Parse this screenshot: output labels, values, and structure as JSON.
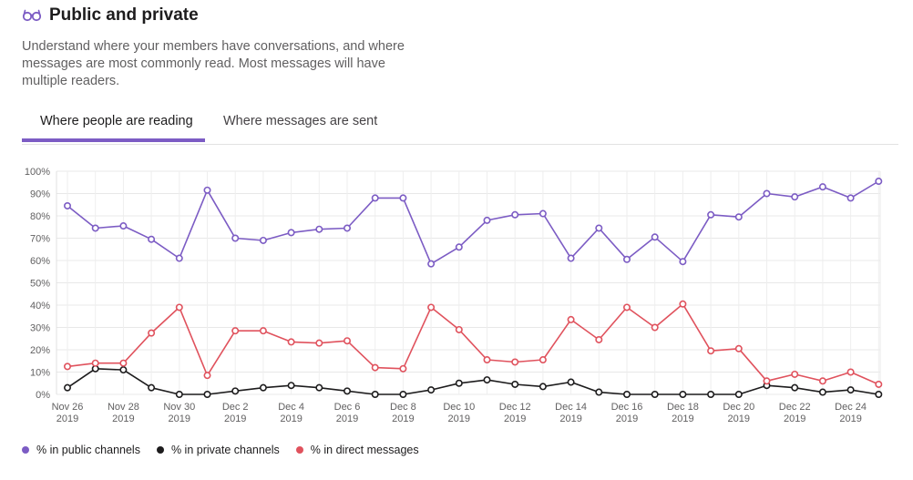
{
  "header": {
    "title": "Public and private",
    "icon": "glasses-icon"
  },
  "description": "Understand where your members have conversations, and where messages are most commonly read. Most messages will have multiple readers.",
  "tabs": [
    {
      "label": "Where people are reading",
      "active": true
    },
    {
      "label": "Where messages are sent",
      "active": false
    }
  ],
  "colors": {
    "public": "#7c5cc4",
    "private": "#1d1c1d",
    "direct": "#e0525d",
    "accent": "#7c5cc4"
  },
  "chart_data": {
    "type": "line",
    "x": [
      "Nov 26 2019",
      "Nov 27 2019",
      "Nov 28 2019",
      "Nov 29 2019",
      "Nov 30 2019",
      "Dec 1 2019",
      "Dec 2 2019",
      "Dec 3 2019",
      "Dec 4 2019",
      "Dec 5 2019",
      "Dec 6 2019",
      "Dec 7 2019",
      "Dec 8 2019",
      "Dec 9 2019",
      "Dec 10 2019",
      "Dec 11 2019",
      "Dec 12 2019",
      "Dec 13 2019",
      "Dec 14 2019",
      "Dec 15 2019",
      "Dec 16 2019",
      "Dec 17 2019",
      "Dec 18 2019",
      "Dec 19 2019",
      "Dec 20 2019",
      "Dec 21 2019",
      "Dec 22 2019",
      "Dec 23 2019",
      "Dec 24 2019",
      "Dec 25 2019"
    ],
    "x_tick_labels": [
      {
        "line1": "Nov 26",
        "line2": "2019"
      },
      {
        "line1": "Nov 28",
        "line2": "2019"
      },
      {
        "line1": "Nov 30",
        "line2": "2019"
      },
      {
        "line1": "Dec 2",
        "line2": "2019"
      },
      {
        "line1": "Dec 4",
        "line2": "2019"
      },
      {
        "line1": "Dec 6",
        "line2": "2019"
      },
      {
        "line1": "Dec 8",
        "line2": "2019"
      },
      {
        "line1": "Dec 10",
        "line2": "2019"
      },
      {
        "line1": "Dec 12",
        "line2": "2019"
      },
      {
        "line1": "Dec 14",
        "line2": "2019"
      },
      {
        "line1": "Dec 16",
        "line2": "2019"
      },
      {
        "line1": "Dec 18",
        "line2": "2019"
      },
      {
        "line1": "Dec 20",
        "line2": "2019"
      },
      {
        "line1": "Dec 22",
        "line2": "2019"
      },
      {
        "line1": "Dec 24",
        "line2": "2019"
      }
    ],
    "y_tick_labels": [
      "0%",
      "10%",
      "20%",
      "30%",
      "40%",
      "50%",
      "60%",
      "70%",
      "80%",
      "90%",
      "100%"
    ],
    "ylim": [
      0,
      100
    ],
    "grid": true,
    "legend_placement": "bottom-left",
    "series": [
      {
        "name": "% in public channels",
        "color_key": "public",
        "values": [
          84.5,
          74.5,
          75.5,
          69.5,
          61,
          91.5,
          70,
          69,
          72.5,
          74,
          74.5,
          88,
          88,
          58.5,
          66,
          78,
          80.5,
          81,
          61,
          74.5,
          60.5,
          70.5,
          59.5,
          80.5,
          79.5,
          90,
          88.5,
          93,
          88,
          95.5
        ]
      },
      {
        "name": "% in private channels",
        "color_key": "private",
        "values": [
          3,
          11.5,
          11,
          3,
          0,
          0,
          1.5,
          3,
          4,
          3,
          1.5,
          0,
          0,
          2,
          5,
          6.5,
          4.5,
          3.5,
          5.5,
          1,
          0,
          0,
          0,
          0,
          0,
          4,
          3,
          1,
          2,
          0
        ]
      },
      {
        "name": "% in direct messages",
        "color_key": "direct",
        "values": [
          12.5,
          14,
          14,
          27.5,
          39,
          8.5,
          28.5,
          28.5,
          23.5,
          23,
          24,
          12,
          11.5,
          39,
          29,
          15.5,
          14.5,
          15.5,
          33.5,
          24.5,
          39,
          30,
          40.5,
          19.5,
          20.5,
          6,
          9,
          6,
          10,
          4.5
        ]
      }
    ]
  }
}
